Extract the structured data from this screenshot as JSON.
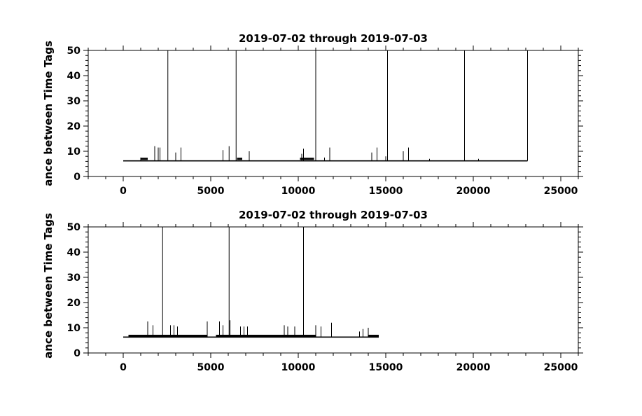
{
  "chart_data": [
    {
      "type": "line",
      "title": "2019-07-02 through 2019-07-03",
      "ylabel": "ance between Time Tags",
      "xlim": [
        -2000,
        26000
      ],
      "ylim": [
        0,
        50
      ],
      "xticks": [
        0,
        5000,
        10000,
        15000,
        20000,
        25000
      ],
      "xtick_labels": [
        "0",
        "5000",
        "10000",
        "15000",
        "20000",
        "25000"
      ],
      "yticks": [
        0,
        10,
        20,
        30,
        40,
        50
      ],
      "ytick_labels": [
        "0",
        "10",
        "20",
        "30",
        "40",
        "50"
      ],
      "grid": false,
      "baseline": {
        "x_start": 0,
        "x_end": 23100,
        "value": 6.2
      },
      "thick_segments": [
        {
          "x_start": 1000,
          "x_end": 1400,
          "value": 7
        },
        {
          "x_start": 6500,
          "x_end": 6800,
          "value": 7
        },
        {
          "x_start": 10100,
          "x_end": 10900,
          "value": 7
        }
      ],
      "spikes": [
        {
          "x": 1000,
          "y": 7.5
        },
        {
          "x": 1800,
          "y": 12
        },
        {
          "x": 2000,
          "y": 11.5
        },
        {
          "x": 2100,
          "y": 11.5
        },
        {
          "x": 2550,
          "y": 50
        },
        {
          "x": 3000,
          "y": 9.5
        },
        {
          "x": 3300,
          "y": 11.5
        },
        {
          "x": 5700,
          "y": 10.5
        },
        {
          "x": 6050,
          "y": 12
        },
        {
          "x": 6450,
          "y": 50
        },
        {
          "x": 7200,
          "y": 10
        },
        {
          "x": 10200,
          "y": 9
        },
        {
          "x": 10300,
          "y": 11
        },
        {
          "x": 11000,
          "y": 50
        },
        {
          "x": 11500,
          "y": 7.5
        },
        {
          "x": 11800,
          "y": 11.5
        },
        {
          "x": 14200,
          "y": 9.5
        },
        {
          "x": 14500,
          "y": 11.5
        },
        {
          "x": 15000,
          "y": 8
        },
        {
          "x": 15100,
          "y": 50
        },
        {
          "x": 16000,
          "y": 10
        },
        {
          "x": 16300,
          "y": 11.5
        },
        {
          "x": 17500,
          "y": 7
        },
        {
          "x": 19500,
          "y": 50
        },
        {
          "x": 20300,
          "y": 7
        },
        {
          "x": 23100,
          "y": 50
        }
      ]
    },
    {
      "type": "line",
      "title": "2019-07-02 through 2019-07-03",
      "ylabel": "ance between Time Tags",
      "xlim": [
        -2000,
        26000
      ],
      "ylim": [
        0,
        50
      ],
      "xticks": [
        0,
        5000,
        10000,
        15000,
        20000,
        25000
      ],
      "xtick_labels": [
        "0",
        "5000",
        "10000",
        "15000",
        "20000",
        "25000"
      ],
      "yticks": [
        0,
        10,
        20,
        30,
        40,
        50
      ],
      "ytick_labels": [
        "0",
        "10",
        "20",
        "30",
        "40",
        "50"
      ],
      "grid": false,
      "baseline": {
        "x_start": 0,
        "x_end": 14600,
        "value": 6.3
      },
      "thick_segments": [
        {
          "x_start": 300,
          "x_end": 4800,
          "value": 6.8
        },
        {
          "x_start": 5300,
          "x_end": 11000,
          "value": 6.8
        },
        {
          "x_start": 14000,
          "x_end": 14600,
          "value": 6.8
        }
      ],
      "spikes": [
        {
          "x": 1400,
          "y": 12.5
        },
        {
          "x": 1700,
          "y": 11
        },
        {
          "x": 2250,
          "y": 50
        },
        {
          "x": 2700,
          "y": 11
        },
        {
          "x": 2900,
          "y": 11
        },
        {
          "x": 3100,
          "y": 10.5
        },
        {
          "x": 4800,
          "y": 12.5
        },
        {
          "x": 5500,
          "y": 12.5
        },
        {
          "x": 5700,
          "y": 11
        },
        {
          "x": 6050,
          "y": 50
        },
        {
          "x": 6100,
          "y": 13
        },
        {
          "x": 6700,
          "y": 10.5
        },
        {
          "x": 6900,
          "y": 10.5
        },
        {
          "x": 7100,
          "y": 10.5
        },
        {
          "x": 9200,
          "y": 11
        },
        {
          "x": 9400,
          "y": 10.5
        },
        {
          "x": 9800,
          "y": 10.5
        },
        {
          "x": 10300,
          "y": 50
        },
        {
          "x": 11000,
          "y": 11
        },
        {
          "x": 11300,
          "y": 10.5
        },
        {
          "x": 11900,
          "y": 12
        },
        {
          "x": 13500,
          "y": 8.5
        },
        {
          "x": 13700,
          "y": 9.5
        },
        {
          "x": 14000,
          "y": 10
        }
      ]
    }
  ]
}
